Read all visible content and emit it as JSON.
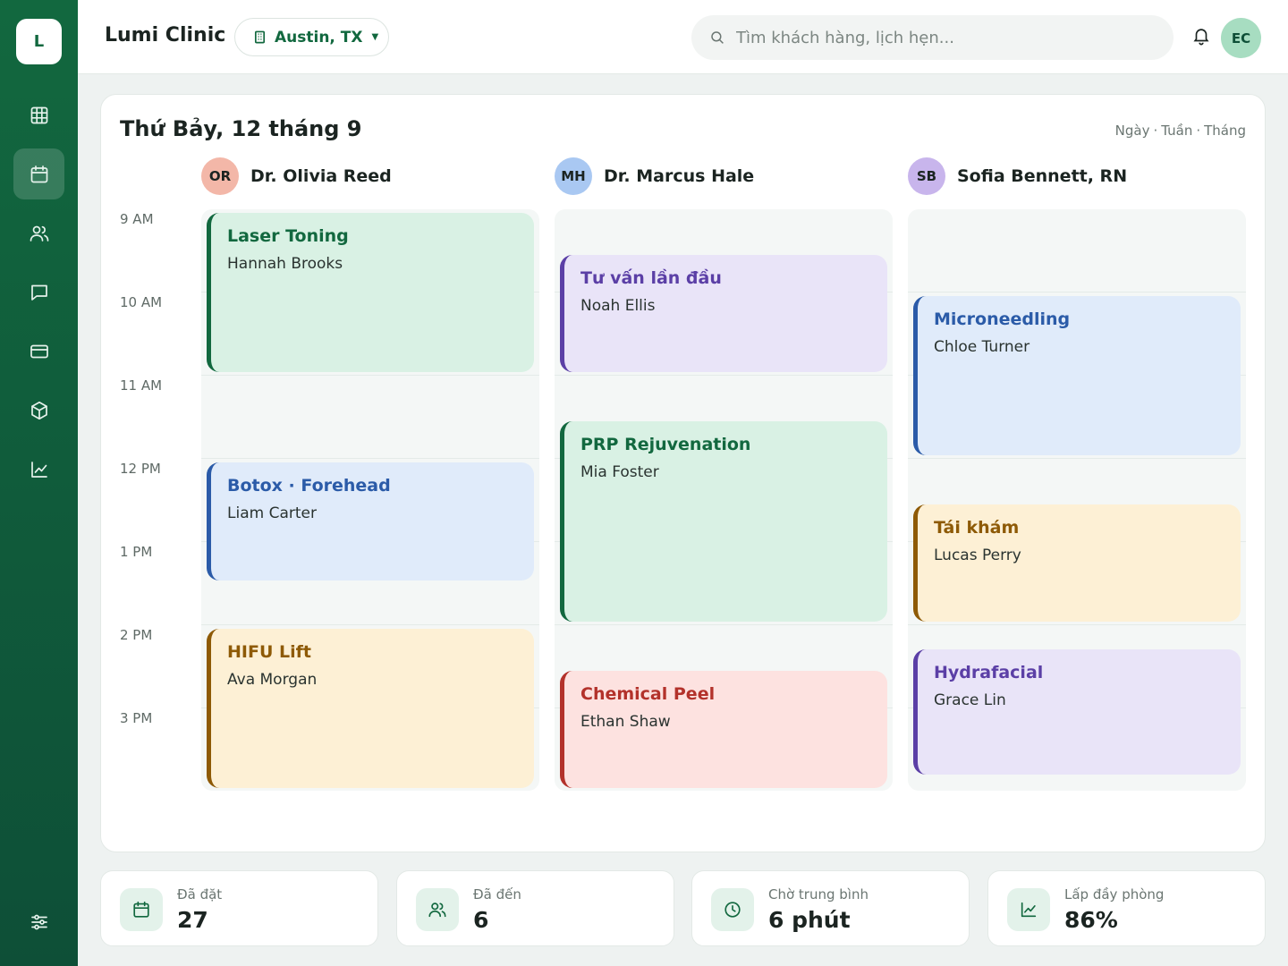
{
  "app": {
    "logo_letter": "L",
    "brand": "Lumi Clinic"
  },
  "location": {
    "label": "Austin, TX"
  },
  "search": {
    "placeholder": "Tìm khách hàng, lịch hẹn..."
  },
  "user": {
    "initials": "EC"
  },
  "sidebar": {
    "items": [
      {
        "icon": "dashboard-grid-icon",
        "active": false
      },
      {
        "icon": "calendar-icon",
        "active": true
      },
      {
        "icon": "users-icon",
        "active": false
      },
      {
        "icon": "chat-icon",
        "active": false
      },
      {
        "icon": "credit-card-icon",
        "active": false
      },
      {
        "icon": "box-icon",
        "active": false
      },
      {
        "icon": "chart-icon",
        "active": false
      }
    ],
    "bottom_icon": "settings-sliders-icon"
  },
  "calendar": {
    "date_title": "Thứ Bảy, 12 tháng 9",
    "views": [
      "Ngày",
      "Tuần",
      "Tháng"
    ],
    "hours": [
      "9 AM",
      "10 AM",
      "11 AM",
      "12 PM",
      "1 PM",
      "2 PM",
      "3 PM"
    ],
    "providers": [
      {
        "initials": "OR",
        "name": "Dr. Olivia Reed",
        "avatar_color": "#f3b7a8",
        "appointments": [
          {
            "service": "Laser Toning",
            "client": "Hannah Brooks",
            "start": "9:00",
            "end": "11:00",
            "theme": "green"
          },
          {
            "service": "Botox · Forehead",
            "client": "Liam Carter",
            "start": "12:00",
            "end": "13:30",
            "theme": "blue"
          },
          {
            "service": "HIFU Lift",
            "client": "Ava Morgan",
            "start": "14:00",
            "end": "16:00",
            "theme": "amber"
          }
        ]
      },
      {
        "initials": "MH",
        "name": "Dr. Marcus Hale",
        "avatar_color": "#a9c8f2",
        "appointments": [
          {
            "service": "Tư vấn lần đầu",
            "client": "Noah Ellis",
            "start": "9:30",
            "end": "11:00",
            "theme": "purple"
          },
          {
            "service": "PRP Rejuvenation",
            "client": "Mia Foster",
            "start": "11:30",
            "end": "14:00",
            "theme": "green"
          },
          {
            "service": "Chemical Peel",
            "client": "Ethan Shaw",
            "start": "14:30",
            "end": "16:00",
            "theme": "red"
          }
        ]
      },
      {
        "initials": "SB",
        "name": "Sofia Bennett, RN",
        "avatar_color": "#c8b5ec",
        "appointments": [
          {
            "service": "Microneedling",
            "client": "Chloe Turner",
            "start": "10:00",
            "end": "12:00",
            "theme": "blue"
          },
          {
            "service": "Tái khám",
            "client": "Lucas Perry",
            "start": "12:30",
            "end": "14:00",
            "theme": "amber"
          },
          {
            "service": "Hydrafacial",
            "client": "Grace Lin",
            "start": "14:15",
            "end": "15:50",
            "theme": "purple"
          }
        ]
      }
    ]
  },
  "stats": [
    {
      "icon": "calendar-icon",
      "label": "Đã đặt",
      "value": "27"
    },
    {
      "icon": "users-icon",
      "label": "Đã đến",
      "value": "6"
    },
    {
      "icon": "clock-icon",
      "label": "Chờ trung bình",
      "value": "6 phút"
    },
    {
      "icon": "chart-icon",
      "label": "Lấp đầy phòng",
      "value": "86%"
    }
  ],
  "themes": {
    "green": {
      "bg": "#d9f1e4",
      "border": "#12683f",
      "text": "#12683f"
    },
    "blue": {
      "bg": "#e0ebfa",
      "border": "#2b5ba8",
      "text": "#2b5ba8"
    },
    "amber": {
      "bg": "#fdf0d5",
      "border": "#8e5a06",
      "text": "#8e5a06"
    },
    "purple": {
      "bg": "#e9e4f8",
      "border": "#5b3fa6",
      "text": "#5b3fa6"
    },
    "red": {
      "bg": "#fde2e0",
      "border": "#b3322b",
      "text": "#b3322b"
    }
  }
}
